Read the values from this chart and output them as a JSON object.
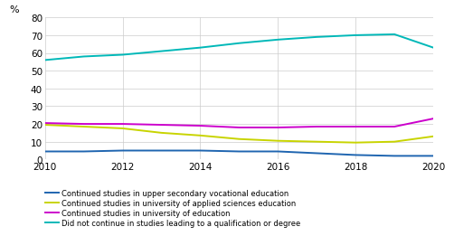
{
  "years": [
    2010,
    2011,
    2012,
    2013,
    2014,
    2015,
    2016,
    2017,
    2018,
    2019,
    2020
  ],
  "series": [
    {
      "key": "upper_secondary_vocational",
      "values": [
        4.5,
        4.5,
        5.0,
        5.0,
        5.0,
        4.5,
        4.5,
        3.5,
        2.5,
        2.0,
        2.0
      ],
      "color": "#1f65b0",
      "label": "Continued studies in upper secondary vocational education"
    },
    {
      "key": "university_applied_sciences",
      "values": [
        19.5,
        18.5,
        17.5,
        15.0,
        13.5,
        11.5,
        10.5,
        10.0,
        9.5,
        10.0,
        13.0
      ],
      "color": "#c8d400",
      "label": "Continued studies in university of applied sciences education"
    },
    {
      "key": "university_of_education",
      "values": [
        20.5,
        20.0,
        20.0,
        19.5,
        19.0,
        18.0,
        18.0,
        18.5,
        18.5,
        18.5,
        23.0
      ],
      "color": "#cc00cc",
      "label": "Continued studies in university of education"
    },
    {
      "key": "did_not_continue",
      "values": [
        56.0,
        58.0,
        59.0,
        61.0,
        63.0,
        65.5,
        67.5,
        69.0,
        70.0,
        70.5,
        63.0
      ],
      "color": "#00b8b8",
      "label": "Did not continue in studies leading to a qualification or degree"
    }
  ],
  "ylabel": "%",
  "ylim": [
    0,
    80
  ],
  "yticks": [
    0,
    10,
    20,
    30,
    40,
    50,
    60,
    70,
    80
  ],
  "xlim": [
    2010,
    2020
  ],
  "xticks": [
    2010,
    2012,
    2014,
    2016,
    2018,
    2020
  ],
  "grid_color": "#cccccc",
  "background_color": "#ffffff",
  "legend_fontsize": 6.0,
  "linewidth": 1.4,
  "tick_labelsize": 7.5
}
